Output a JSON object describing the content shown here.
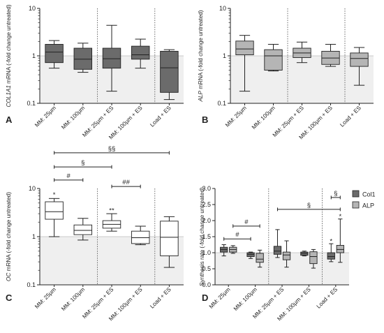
{
  "chart_data": [
    {
      "panel": "A",
      "type": "box",
      "ylabel_italic": "COL1A1",
      "ylabel_rest": " mRNA (-fold change untreated)",
      "yscale": "log",
      "ylim": [
        0.1,
        10
      ],
      "yticks": [
        0.1,
        1,
        10
      ],
      "ytick_labels": [
        "0.1",
        "1",
        "10"
      ],
      "categories": [
        "MM: 25µm",
        "MM: 100µm",
        "MM: 25µm + ES",
        "MM: 100µm + ES",
        "Load + ES"
      ],
      "color": "#6b6b6b",
      "boxes": [
        {
          "min": 0.55,
          "q1": 0.72,
          "median": 1.2,
          "q3": 1.75,
          "max": 2.1
        },
        {
          "min": 0.45,
          "q1": 0.52,
          "median": 0.85,
          "q3": 1.45,
          "max": 1.85
        },
        {
          "min": 0.18,
          "q1": 0.55,
          "median": 0.87,
          "q3": 1.45,
          "max": 4.4
        },
        {
          "min": 0.55,
          "q1": 0.85,
          "median": 1.05,
          "q3": 1.6,
          "max": 2.25
        },
        {
          "min": 0.12,
          "q1": 0.17,
          "median": 0.56,
          "q3": 1.25,
          "max": 1.35
        }
      ],
      "dividers_after": [
        2,
        4
      ],
      "annotations": []
    },
    {
      "panel": "B",
      "type": "box",
      "ylabel_italic": "ALP",
      "ylabel_rest": " mRNA (-fold change untreated)",
      "yscale": "log",
      "ylim": [
        0.1,
        10
      ],
      "yticks": [
        0.1,
        1,
        10
      ],
      "ytick_labels": [
        "0.1",
        "1",
        "10"
      ],
      "categories": [
        "MM: 25µm",
        "MM: 100µm",
        "MM: 25µm + ES",
        "MM: 100µm + ES",
        "Load + ES"
      ],
      "color": "#b5b5b5",
      "boxes": [
        {
          "min": 0.18,
          "q1": 1.05,
          "median": 1.4,
          "q3": 2.05,
          "max": 2.7
        },
        {
          "min": 0.48,
          "q1": 0.5,
          "median": 1.0,
          "q3": 1.35,
          "max": 1.75
        },
        {
          "min": 0.72,
          "q1": 0.92,
          "median": 1.15,
          "q3": 1.45,
          "max": 1.95
        },
        {
          "min": 0.6,
          "q1": 0.66,
          "median": 0.9,
          "q3": 1.25,
          "max": 1.75
        },
        {
          "min": 0.24,
          "q1": 0.6,
          "median": 0.88,
          "q3": 1.15,
          "max": 1.5
        }
      ],
      "dividers_after": [
        2,
        4
      ],
      "annotations": []
    },
    {
      "panel": "C",
      "type": "box",
      "ylabel_italic": "OC",
      "ylabel_rest": " mRNA (-fold change untreated)",
      "yscale": "log",
      "ylim": [
        0.1,
        10
      ],
      "yticks": [
        0.1,
        1,
        10
      ],
      "ytick_labels": [
        "0.1",
        "1",
        "10"
      ],
      "categories": [
        "MM: 25µm",
        "MM: 100µm",
        "MM: 25µm + ES",
        "MM: 100µm + ES",
        "Load + ES"
      ],
      "color": "#ffffff",
      "boxes": [
        {
          "min": 1.0,
          "q1": 2.3,
          "median": 3.3,
          "q3": 5.3,
          "max": 6.2
        },
        {
          "min": 0.85,
          "q1": 1.1,
          "median": 1.35,
          "q3": 1.75,
          "max": 2.4
        },
        {
          "min": 1.3,
          "q1": 1.5,
          "median": 1.8,
          "q3": 2.15,
          "max": 3.0
        },
        {
          "min": 0.68,
          "q1": 0.72,
          "median": 0.95,
          "q3": 1.3,
          "max": 1.65
        },
        {
          "min": 0.23,
          "q1": 0.4,
          "median": 0.97,
          "q3": 2.1,
          "max": 2.6
        }
      ],
      "dividers_after": [
        2,
        4
      ],
      "annotations": [
        {
          "text": "*",
          "cat": 0,
          "y": 7.6
        },
        {
          "text": "**",
          "cat": 2,
          "y": 3.6
        }
      ],
      "brackets": [
        {
          "label": "§§",
          "from": 0,
          "to": 4,
          "y": 55
        },
        {
          "label": "§",
          "from": 0,
          "to": 2,
          "y": 28
        },
        {
          "label": "#",
          "from": 0,
          "to": 1,
          "y": 15
        },
        {
          "label": "##",
          "from": 2,
          "to": 3,
          "y": 11
        }
      ]
    },
    {
      "panel": "D",
      "type": "grouped-box",
      "ylabel": "Synthesis rate (-fold change untreated)",
      "yscale": "linear",
      "ylim": [
        0.0,
        3.0
      ],
      "yticks": [
        0.0,
        0.5,
        1.0,
        1.5,
        2.0,
        2.5,
        3.0
      ],
      "ytick_labels": [
        "0.0",
        "0.5",
        "1.0",
        "1.5",
        "2.0",
        "2.5",
        "3.0"
      ],
      "categories": [
        "MM: 25µm",
        "MM: 100µm",
        "MM: 25µm + ES",
        "MM: 100µm + ES",
        "Load + ES"
      ],
      "legend": [
        {
          "name": "Col1",
          "color": "#6b6b6b"
        },
        {
          "name": "ALP",
          "color": "#b5b5b5"
        }
      ],
      "series": [
        {
          "name": "Col1",
          "boxes": [
            {
              "min": 0.9,
              "q1": 1.02,
              "median": 1.1,
              "q3": 1.17,
              "max": 1.25
            },
            {
              "min": 0.82,
              "q1": 0.88,
              "median": 0.95,
              "q3": 1.0,
              "max": 1.02
            },
            {
              "min": 0.85,
              "q1": 0.95,
              "median": 1.05,
              "q3": 1.2,
              "max": 1.72
            },
            {
              "min": 0.9,
              "q1": 0.92,
              "median": 0.98,
              "q3": 1.02,
              "max": 1.05
            },
            {
              "min": 0.72,
              "q1": 0.8,
              "median": 0.88,
              "q3": 1.0,
              "max": 1.28
            }
          ]
        },
        {
          "name": "ALP",
          "boxes": [
            {
              "min": 0.98,
              "q1": 1.02,
              "median": 1.1,
              "q3": 1.17,
              "max": 1.22
            },
            {
              "min": 0.55,
              "q1": 0.7,
              "median": 0.8,
              "q3": 0.98,
              "max": 1.08
            },
            {
              "min": 0.55,
              "q1": 0.78,
              "median": 0.93,
              "q3": 1.02,
              "max": 1.37
            },
            {
              "min": 0.52,
              "q1": 0.66,
              "median": 0.88,
              "q3": 1.03,
              "max": 1.1
            },
            {
              "min": 0.7,
              "q1": 1.0,
              "median": 1.1,
              "q3": 1.23,
              "max": 2.05
            }
          ]
        }
      ],
      "dividers_after": [
        2,
        4
      ],
      "annotations": [
        {
          "text": "*",
          "cat": 4,
          "series": 0,
          "y": 1.38
        },
        {
          "text": "*",
          "cat": 4,
          "series": 1,
          "y": 2.15
        }
      ],
      "brackets": [
        {
          "label": "§",
          "from": 2,
          "to": 4,
          "y": 2.35,
          "series_from": 0,
          "series_to": 1
        },
        {
          "label": "§",
          "from": 4,
          "to": 4,
          "y": 2.72,
          "series_from": 0,
          "series_to": 1
        },
        {
          "label": "#",
          "from": 0,
          "to": 1,
          "y": 1.83,
          "series_from": 1,
          "series_to": 1
        },
        {
          "label": "#",
          "from": 0,
          "to": 1,
          "y": 1.43,
          "series_from": 0,
          "series_to": 0
        }
      ]
    }
  ]
}
